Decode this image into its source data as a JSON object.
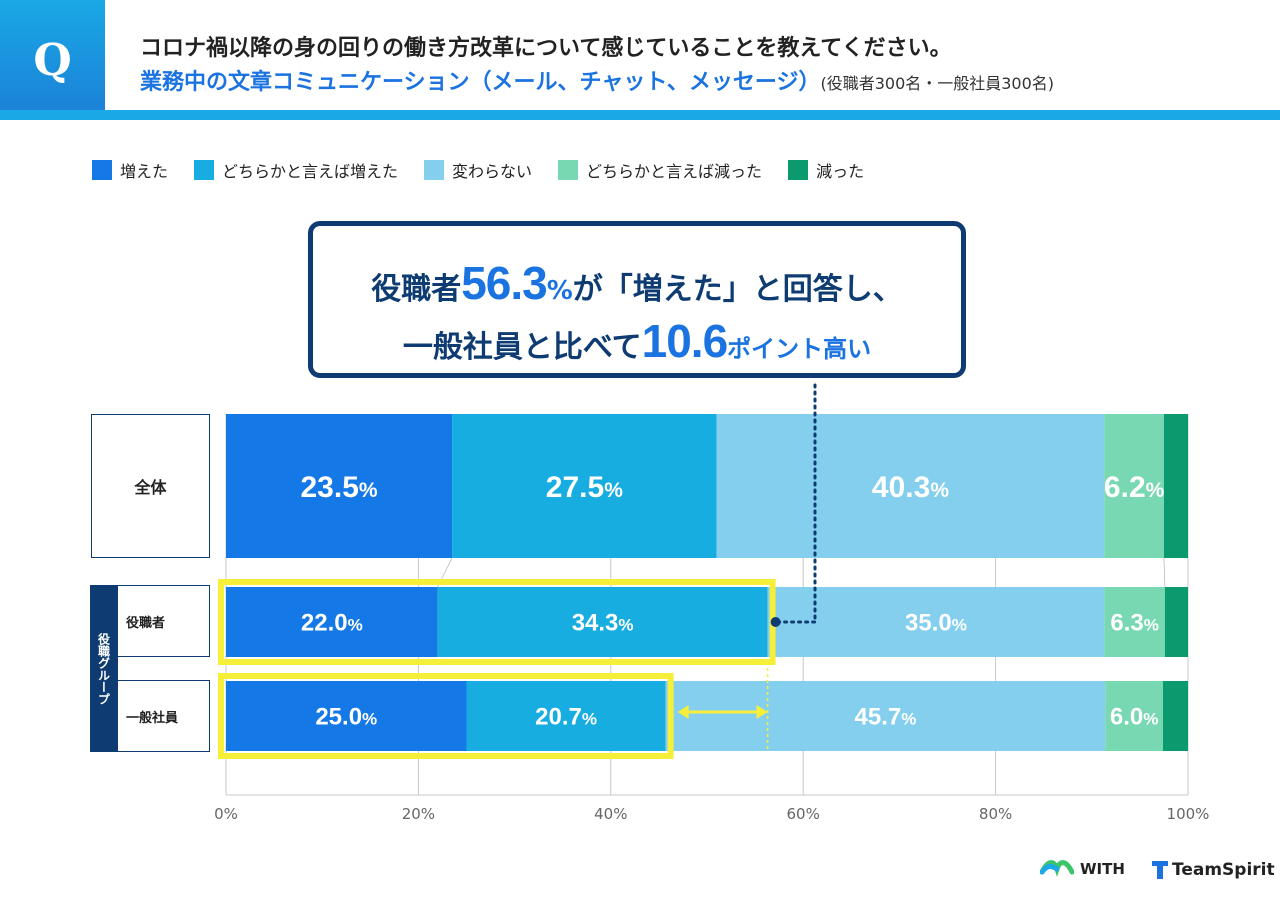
{
  "header": {
    "badge": "Q",
    "question": "コロナ禍以降の身の回りの働き方改革について感じていることを教えてください。",
    "topic": "業務中の文章コミュニケーション（メール、チャット、メッセージ）",
    "sample": "(役職者300名・一般社員300名)"
  },
  "legend": [
    {
      "label": "増えた",
      "color": "#1478e6"
    },
    {
      "label": "どちらかと言えば増えた",
      "color": "#18ade0"
    },
    {
      "label": "変わらない",
      "color": "#85cfee"
    },
    {
      "label": "どちらかと言えば減った",
      "color": "#77d8b2"
    },
    {
      "label": "減った",
      "color": "#0a9a6e"
    }
  ],
  "callout": {
    "l1_pre": "役職者",
    "l1_num": "56.3",
    "l1_pct": "%",
    "l1_post": "が「増えた」と回答し、",
    "l2_pre": "一般社員と比べて",
    "l2_num": "10.6",
    "l2_post": "ポイント高い"
  },
  "rows": {
    "all": "全体",
    "group": "役職グループ",
    "manager": "役職者",
    "staff": "一般社員"
  },
  "chart_data": {
    "type": "bar",
    "orientation": "horizontal-stacked-100",
    "categories": [
      "全体",
      "役職者",
      "一般社員"
    ],
    "series": [
      {
        "name": "増えた",
        "values": [
          23.5,
          22.0,
          25.0
        ],
        "labels": [
          "23.5%",
          "22.0%",
          "25.0%"
        ]
      },
      {
        "name": "どちらかと言えば増えた",
        "values": [
          27.5,
          34.3,
          20.7
        ],
        "labels": [
          "27.5%",
          "34.3%",
          "20.7%"
        ]
      },
      {
        "name": "変わらない",
        "values": [
          40.3,
          35.0,
          45.7
        ],
        "labels": [
          "40.3%",
          "35.0%",
          "45.7%"
        ]
      },
      {
        "name": "どちらかと言えば減った",
        "values": [
          6.2,
          6.3,
          6.0
        ],
        "labels": [
          "6.2%",
          "6.3%",
          "6.0%"
        ]
      },
      {
        "name": "減った",
        "values": [
          2.5,
          2.4,
          2.6
        ],
        "labels": [
          "",
          "",
          ""
        ]
      }
    ],
    "xlim": [
      0,
      100
    ],
    "xticks": [
      "0%",
      "20%",
      "40%",
      "60%",
      "80%",
      "100%"
    ],
    "grid": true
  },
  "logos": {
    "with": "WITH",
    "teamspirit": "TeamSpirit"
  }
}
